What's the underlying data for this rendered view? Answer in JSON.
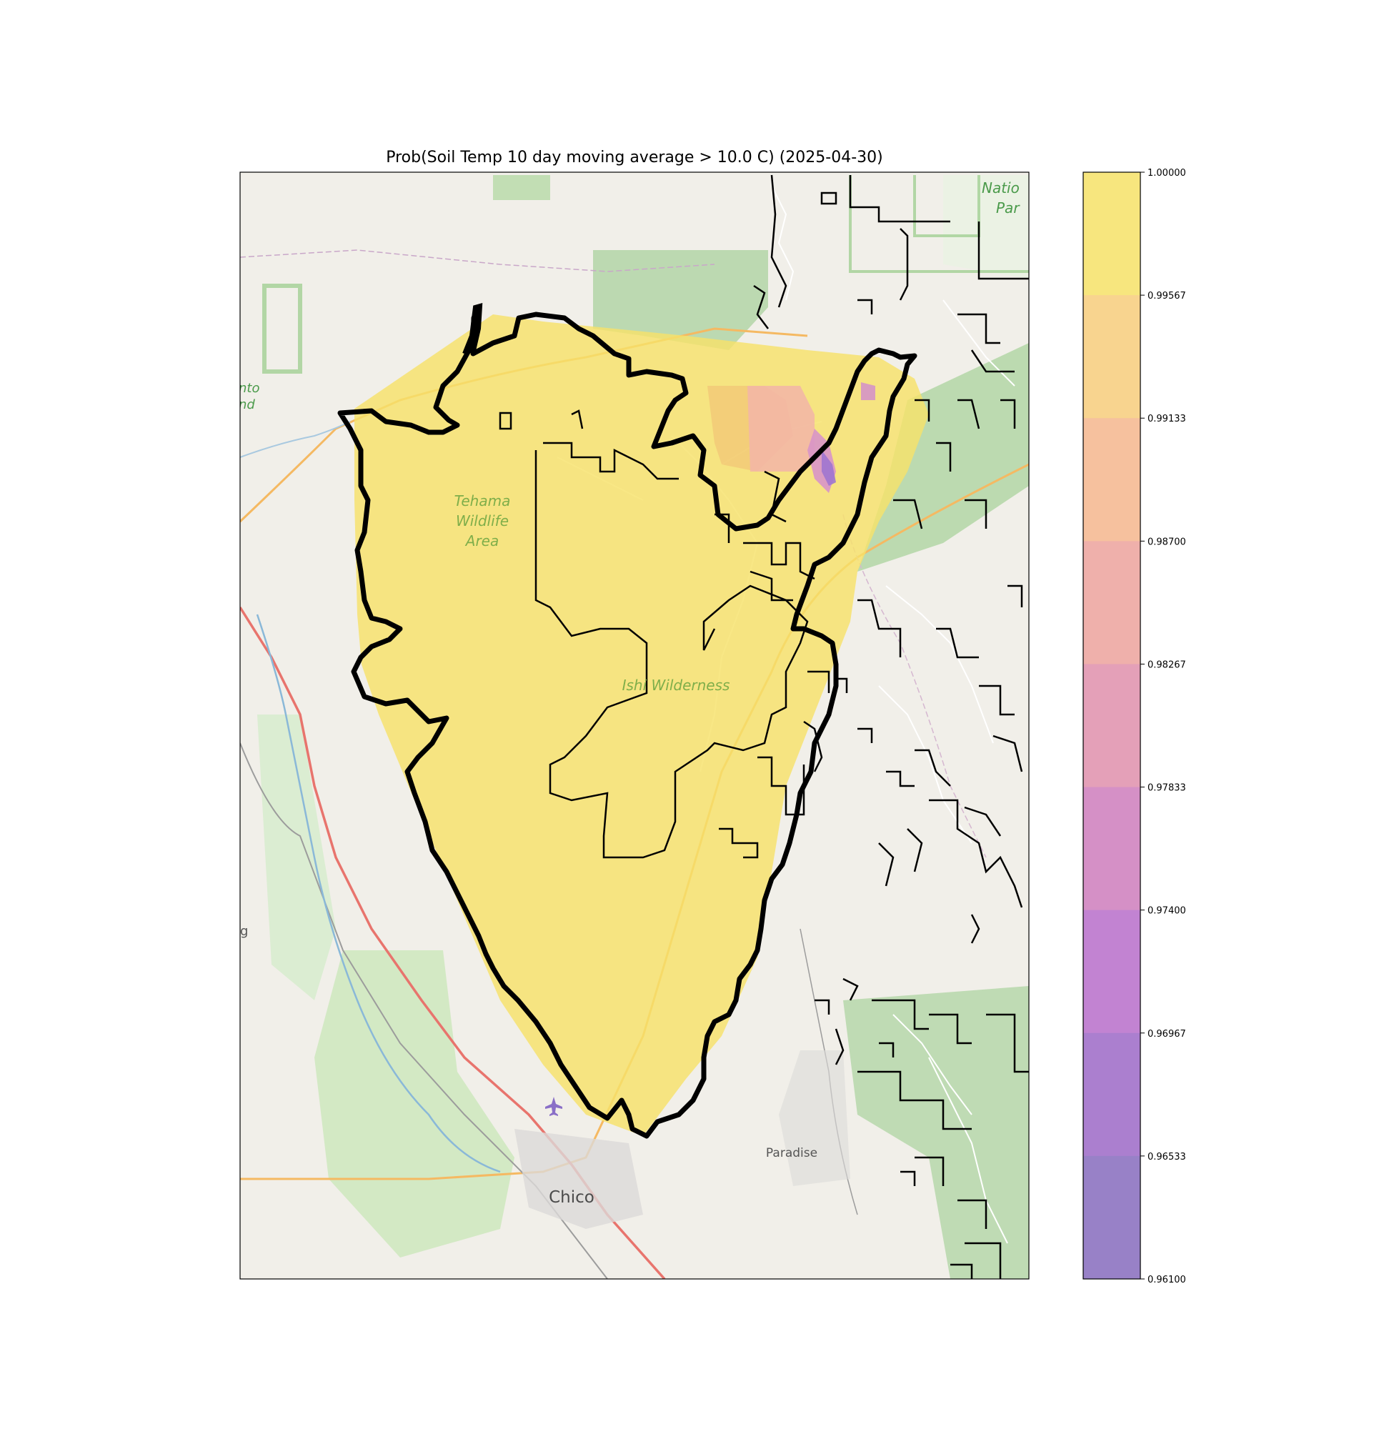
{
  "title": "Prob(Soil Temp 10 day moving average > 10.0 C) (2025-04-30)",
  "map_labels": {
    "tehama": [
      "Tehama",
      "Wildlife",
      "Area"
    ],
    "ishi": "Ishi Wilderness",
    "national_park": [
      "Natio",
      "Par"
    ],
    "refuge_partial": [
      "nto",
      "nd"
    ],
    "left_partial": "g",
    "chico": "Chico",
    "paradise": "Paradise"
  },
  "colorbar": {
    "ticks": [
      "1.00000",
      "0.99567",
      "0.99133",
      "0.98700",
      "0.98267",
      "0.97833",
      "0.97400",
      "0.96967",
      "0.96533",
      "0.96100"
    ],
    "bands": [
      "#f7e67e",
      "#f8d48f",
      "#f6c19e",
      "#efb0ab",
      "#e4a0b8",
      "#d590c6",
      "#c283d2",
      "#ab7fcf",
      "#9881c7"
    ]
  },
  "colors": {
    "probability_fill": "#f6e26a",
    "low_probability_fill": "#b476d6",
    "protected_area": "#9fcf90",
    "basemap": "#f1efe9"
  }
}
